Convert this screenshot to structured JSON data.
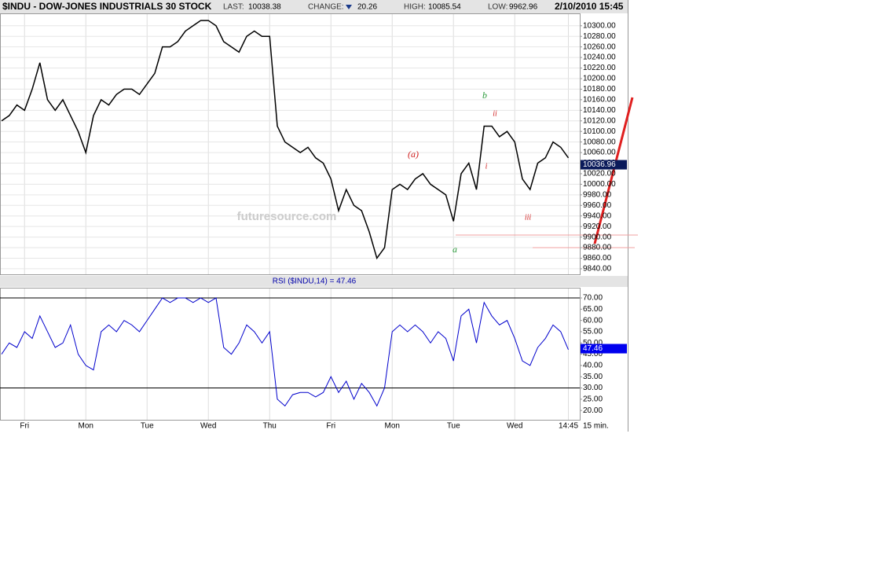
{
  "header": {
    "symbol": "$INDU - DOW-JONES INDUSTRIALS 30 STOCK",
    "last_label": "LAST:",
    "last": "10038.38",
    "change_label": "CHANGE:",
    "change": "20.26",
    "high_label": "HIGH:",
    "high": "10085.54",
    "low_label": "LOW:",
    "low": "9962.96",
    "datetime": "2/10/2010 15:45"
  },
  "watermark": "futuresource.com",
  "interval": "15 min.",
  "chart_data": [
    {
      "type": "line",
      "color": "#000000",
      "grid": true,
      "categories": [
        null,
        null,
        null,
        "Fri",
        null,
        null,
        null,
        null,
        null,
        null,
        null,
        "Mon",
        null,
        null,
        null,
        null,
        null,
        null,
        null,
        "Tue",
        null,
        null,
        null,
        null,
        null,
        null,
        null,
        "Wed",
        null,
        null,
        null,
        null,
        null,
        null,
        null,
        "Thu",
        null,
        null,
        null,
        null,
        null,
        null,
        null,
        "Fri",
        null,
        null,
        null,
        null,
        null,
        null,
        null,
        "Mon",
        null,
        null,
        null,
        null,
        null,
        null,
        null,
        "Tue",
        null,
        null,
        null,
        null,
        null,
        null,
        null,
        "Wed",
        null,
        null,
        null,
        null,
        null,
        null,
        "14:45"
      ],
      "values": [
        10120,
        10130,
        10150,
        10140,
        10180,
        10230,
        10160,
        10140,
        10160,
        10130,
        10100,
        10060,
        10130,
        10160,
        10150,
        10170,
        10180,
        10180,
        10170,
        10190,
        10210,
        10260,
        10260,
        10270,
        10290,
        10300,
        10310,
        10310,
        10300,
        10270,
        10260,
        10250,
        10280,
        10290,
        10280,
        10280,
        10110,
        10080,
        10070,
        10060,
        10070,
        10050,
        10040,
        10010,
        9950,
        9990,
        9960,
        9950,
        9910,
        9860,
        9880,
        9990,
        10000,
        9990,
        10010,
        10020,
        10000,
        9990,
        9980,
        9930,
        10020,
        10040,
        9990,
        10110,
        10110,
        10090,
        10100,
        10080,
        10010,
        9990,
        10040,
        10050,
        10080,
        10070,
        10050
      ],
      "last_value": 10036.96,
      "ylim": [
        9828,
        10322
      ],
      "yticks": [
        {
          "value": 9840,
          "label": "9840.00"
        },
        {
          "value": 9860,
          "label": "9860.00"
        },
        {
          "value": 9880,
          "label": "9880.00"
        },
        {
          "value": 9900,
          "label": "9900.00"
        },
        {
          "value": 9920,
          "label": "9920.00"
        },
        {
          "value": 9940,
          "label": "9940.00"
        },
        {
          "value": 9960,
          "label": "9960.00"
        },
        {
          "value": 9980,
          "label": "9980.00"
        },
        {
          "value": 10000,
          "label": "10000.00"
        },
        {
          "value": 10020,
          "label": "10020.00"
        },
        {
          "value": 10040,
          "label": "10040.00"
        },
        {
          "value": 10060,
          "label": "10060.00"
        },
        {
          "value": 10080,
          "label": "10080.00"
        },
        {
          "value": 10100,
          "label": "10100.00"
        },
        {
          "value": 10120,
          "label": "10120.00"
        },
        {
          "value": 10140,
          "label": "10140.00"
        },
        {
          "value": 10160,
          "label": "10160.00"
        },
        {
          "value": 10180,
          "label": "10180.00"
        },
        {
          "value": 10200,
          "label": "10200.00"
        },
        {
          "value": 10220,
          "label": "10220.00"
        },
        {
          "value": 10240,
          "label": "10240.00"
        },
        {
          "value": 10260,
          "label": "10260.00"
        },
        {
          "value": 10280,
          "label": "10280.00"
        },
        {
          "value": 10300,
          "label": "10300.00"
        }
      ],
      "annotations": [
        {
          "text": "b"
        },
        {
          "text": "ii"
        },
        {
          "text": "(a)"
        },
        {
          "text": "i"
        },
        {
          "text": "iii"
        },
        {
          "text": "a"
        }
      ]
    },
    {
      "type": "line",
      "title": "RSI ($INDU,14) = 47.46",
      "color": "#0000cc",
      "values": [
        45,
        50,
        48,
        55,
        52,
        62,
        55,
        48,
        50,
        58,
        45,
        40,
        38,
        55,
        58,
        55,
        60,
        58,
        55,
        60,
        65,
        70,
        68,
        70,
        70,
        68,
        70,
        68,
        70,
        48,
        45,
        50,
        58,
        55,
        50,
        55,
        25,
        22,
        27,
        28,
        28,
        26,
        28,
        35,
        28,
        33,
        25,
        32,
        28,
        22,
        30,
        55,
        58,
        55,
        58,
        55,
        50,
        55,
        52,
        42,
        62,
        65,
        50,
        68,
        62,
        58,
        60,
        52,
        42,
        40,
        48,
        52,
        58,
        55,
        47
      ],
      "last_value": 47.46,
      "levels": [
        70,
        30
      ],
      "ylim": [
        15.5,
        74.2
      ],
      "yticks": [
        {
          "value": 20,
          "label": "20.00"
        },
        {
          "value": 25,
          "label": "25.00"
        },
        {
          "value": 30,
          "label": "30.00"
        },
        {
          "value": 35,
          "label": "35.00"
        },
        {
          "value": 40,
          "label": "40.00"
        },
        {
          "value": 45,
          "label": "45.00"
        },
        {
          "value": 50,
          "label": "50.00"
        },
        {
          "value": 55,
          "label": "55.00"
        },
        {
          "value": 60,
          "label": "60.00"
        },
        {
          "value": 65,
          "label": "65.00"
        },
        {
          "value": 70,
          "label": "70.00"
        }
      ]
    }
  ]
}
